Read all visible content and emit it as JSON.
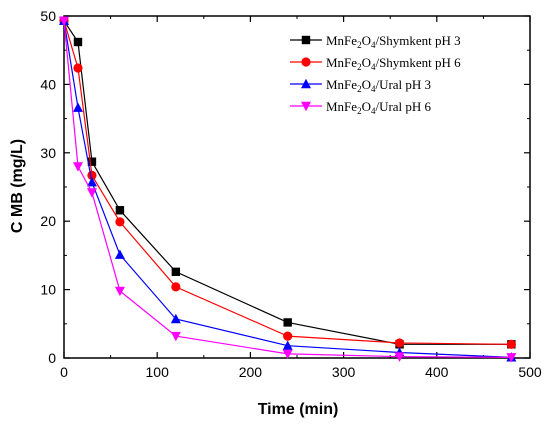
{
  "chart_data": {
    "type": "line",
    "title": "",
    "xlabel": "Time (min)",
    "ylabel": "C MB (mg/L)",
    "xlim": [
      0,
      500
    ],
    "ylim": [
      0,
      50
    ],
    "xticks": [
      0,
      100,
      200,
      300,
      400,
      500
    ],
    "yticks": [
      0,
      10,
      20,
      30,
      40,
      50
    ],
    "xtick_labels": [
      "0",
      "100",
      "200",
      "300",
      "400",
      "500"
    ],
    "ytick_labels": [
      "0",
      "10",
      "20",
      "30",
      "40",
      "50"
    ],
    "grid": false,
    "legend_position": "top-right",
    "x": [
      0,
      15,
      30,
      60,
      120,
      240,
      360,
      480
    ],
    "series": [
      {
        "name": "MnFe2O4/Shymkent pH 3",
        "legend": {
          "pre": "MnFe",
          "sub1": "2",
          "mid": "O",
          "sub2": "4",
          "post": "/Shymkent pH 3"
        },
        "color": "#000000",
        "marker": "square",
        "values": [
          49.3,
          46.2,
          28.7,
          21.6,
          12.6,
          5.2,
          2.0,
          2.0
        ]
      },
      {
        "name": "MnFe2O4/Shymkent pH 6",
        "legend": {
          "pre": "MnFe",
          "sub1": "2",
          "mid": "O",
          "sub2": "4",
          "post": "/Shymkent pH 6"
        },
        "color": "#ff0000",
        "marker": "circle",
        "values": [
          49.3,
          42.4,
          26.7,
          19.9,
          10.4,
          3.2,
          2.2,
          2.0
        ]
      },
      {
        "name": "MnFe2O4/Ural pH 3",
        "legend": {
          "pre": "MnFe",
          "sub1": "2",
          "mid": "O",
          "sub2": "4",
          "post": "/Ural pH 3"
        },
        "color": "#0000ff",
        "marker": "triangle-up",
        "values": [
          49.3,
          36.6,
          25.7,
          15.1,
          5.7,
          1.8,
          0.8,
          0.1
        ]
      },
      {
        "name": "MnFe2O4/Ural pH 6",
        "legend": {
          "pre": "MnFe",
          "sub1": "2",
          "mid": "O",
          "sub2": "4",
          "post": "/Ural pH 6"
        },
        "color": "#ff00ff",
        "marker": "triangle-down",
        "values": [
          49.3,
          28.0,
          24.2,
          9.8,
          3.2,
          0.6,
          0.2,
          0.1
        ]
      }
    ]
  }
}
